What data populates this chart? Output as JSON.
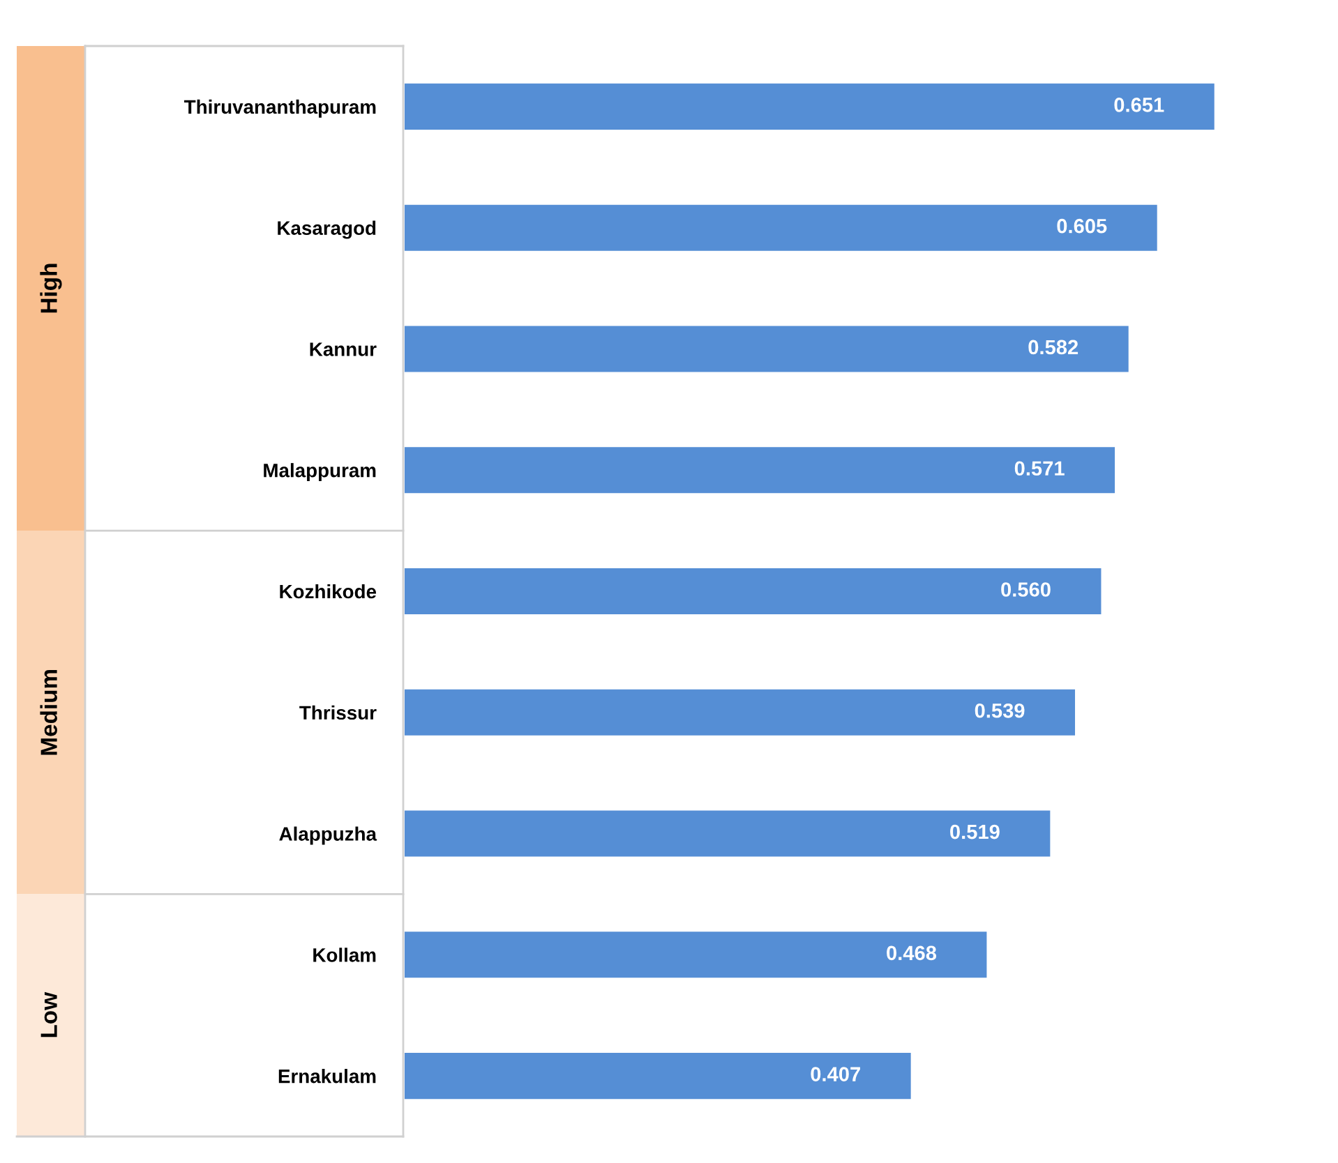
{
  "chart_data": {
    "type": "bar",
    "orientation": "horizontal",
    "grid": false,
    "value_labels": [
      "0.651",
      "0.605",
      "0.582",
      "0.571",
      "0.560",
      "0.539",
      "0.519",
      "0.468",
      "0.407"
    ],
    "categories": [
      "Thiruvananthapuram",
      "Kasaragod",
      "Kannur",
      "Malappuram",
      "Kozhikode",
      "Thrissur",
      "Alappuzha",
      "Kollam",
      "Ernakulam"
    ],
    "values": [
      0.651,
      0.605,
      0.582,
      0.571,
      0.56,
      0.539,
      0.519,
      0.468,
      0.407
    ],
    "color": "#558ed5",
    "annotations": [
      "High",
      "Medium",
      "Low"
    ]
  }
}
